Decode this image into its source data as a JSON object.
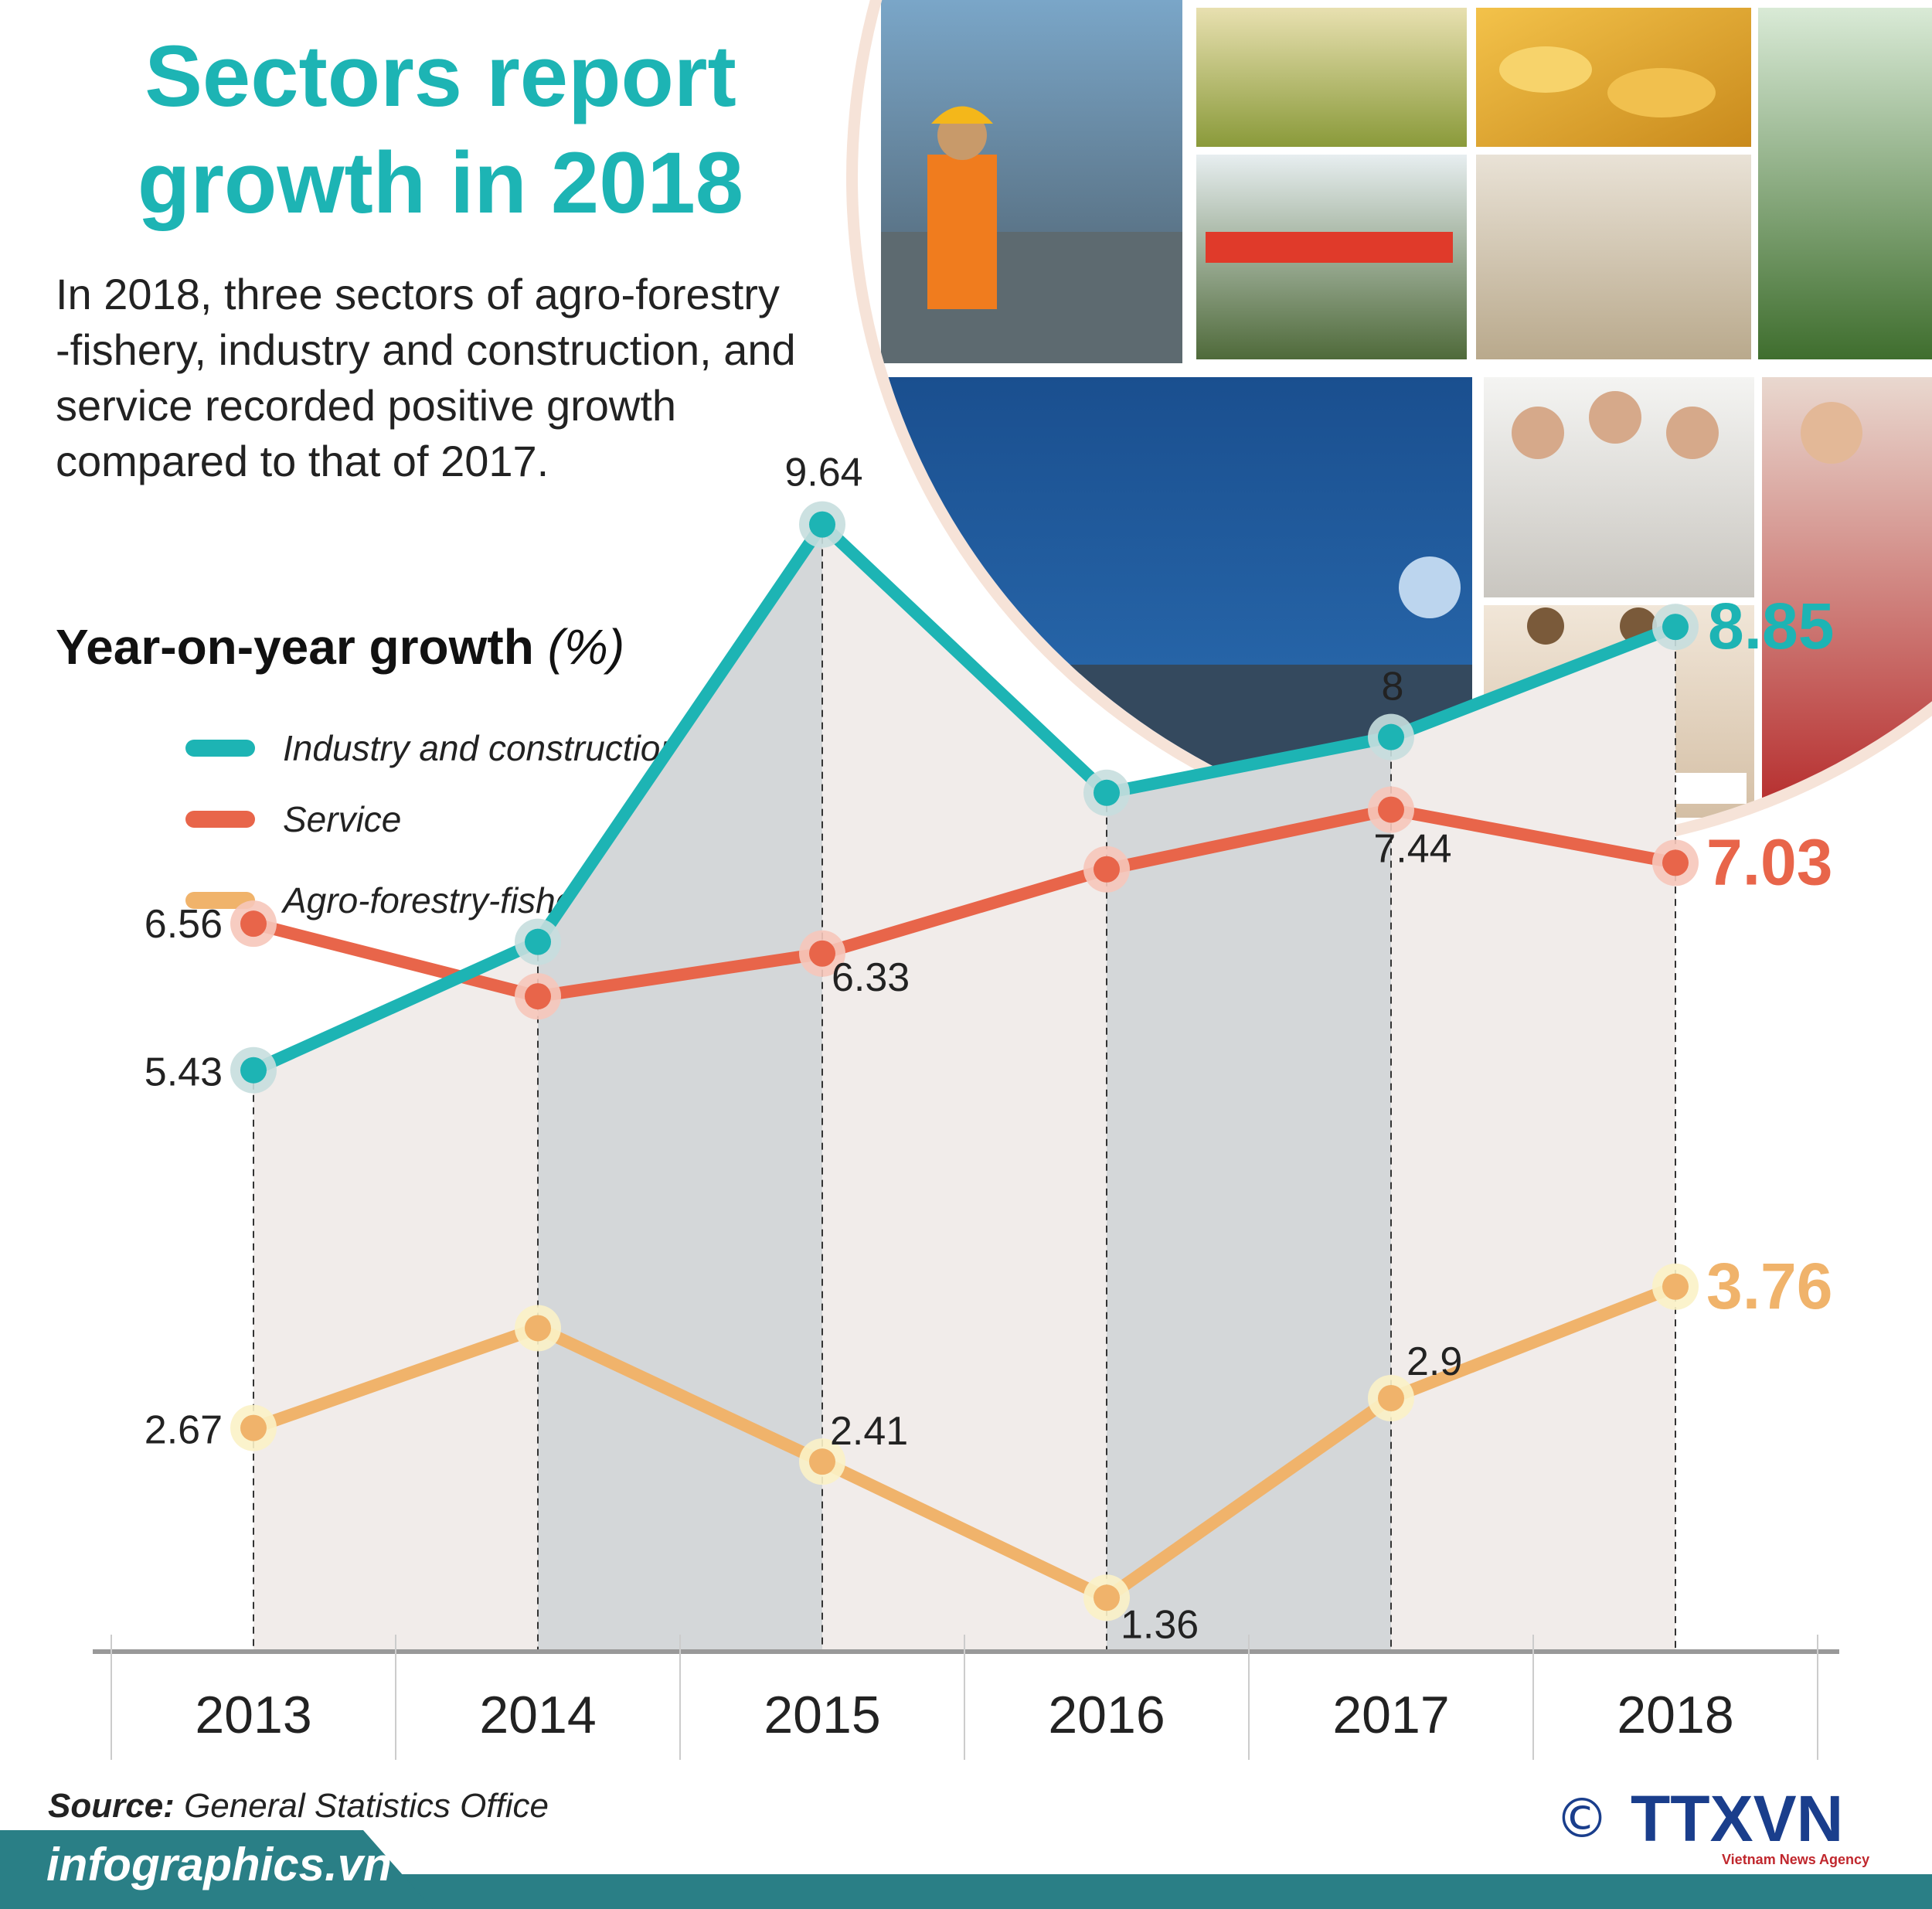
{
  "title": [
    "Sectors report",
    "growth in 2018"
  ],
  "intro": [
    "In 2018, three sectors of agro-forestry",
    "-fishery, industry and construction, and",
    "service recorded positive growth",
    "compared to that of 2017."
  ],
  "chart_heading": "Year-on-year growth",
  "chart_unit": "(%)",
  "source_label": "Source:",
  "source_text": "General Statistics Office",
  "site": "infographics.vn",
  "copyright": "©",
  "logo": {
    "text": "TTXVN",
    "subtitle": "Vietnam News Agency"
  },
  "colors": {
    "industry": "#1db4b4",
    "service": "#e8654a",
    "agro": "#f0b36b",
    "brand": "#2a7f86"
  },
  "chart_data": {
    "type": "line",
    "title": "Year-on-year growth (%)",
    "ylabel": "%",
    "categories": [
      "2013",
      "2014",
      "2015",
      "2016",
      "2017",
      "2018"
    ],
    "series": [
      {
        "name": "Industry and construction",
        "color": "#1db4b4",
        "values": [
          5.43,
          6.42,
          9.64,
          7.57,
          8.0,
          8.85
        ],
        "labels": [
          "5.43",
          "",
          "9.64",
          "",
          "8",
          "8.85"
        ]
      },
      {
        "name": "Service",
        "color": "#e8654a",
        "values": [
          6.56,
          6.0,
          6.33,
          6.98,
          7.44,
          7.03
        ],
        "labels": [
          "6.56",
          "",
          "6.33",
          "",
          "7.44",
          "7.03"
        ]
      },
      {
        "name": "Agro-forestry-fishery",
        "color": "#f0b36b",
        "values": [
          2.67,
          3.44,
          2.41,
          1.36,
          2.9,
          3.76
        ],
        "labels": [
          "2.67",
          "",
          "2.41",
          "1.36",
          "2.9",
          "3.76"
        ]
      }
    ],
    "legend": "top-left",
    "grid": false
  }
}
